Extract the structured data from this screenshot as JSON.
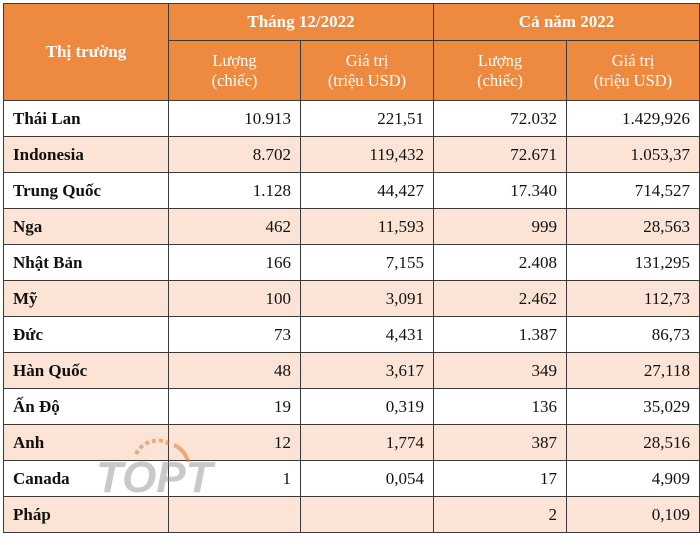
{
  "header": {
    "market": "Thị trường",
    "group1": "Tháng 12/2022",
    "group2": "Cả năm 2022",
    "qty_line1": "Lượng",
    "qty_line2": "(chiếc)",
    "val_line1": "Giá trị",
    "val_line2": "(triệu USD)"
  },
  "rows": [
    {
      "name": "Thái Lan",
      "m_qty": "10.913",
      "m_val": "221,51",
      "y_qty": "72.032",
      "y_val": "1.429,926"
    },
    {
      "name": "Indonesia",
      "m_qty": "8.702",
      "m_val": "119,432",
      "y_qty": "72.671",
      "y_val": "1.053,37"
    },
    {
      "name": "Trung Quốc",
      "m_qty": "1.128",
      "m_val": "44,427",
      "y_qty": "17.340",
      "y_val": "714,527"
    },
    {
      "name": "Nga",
      "m_qty": "462",
      "m_val": "11,593",
      "y_qty": "999",
      "y_val": "28,563"
    },
    {
      "name": "Nhật Bản",
      "m_qty": "166",
      "m_val": "7,155",
      "y_qty": "2.408",
      "y_val": "131,295"
    },
    {
      "name": "Mỹ",
      "m_qty": "100",
      "m_val": "3,091",
      "y_qty": "2.462",
      "y_val": "112,73"
    },
    {
      "name": "Đức",
      "m_qty": "73",
      "m_val": "4,431",
      "y_qty": "1.387",
      "y_val": "86,73"
    },
    {
      "name": "Hàn Quốc",
      "m_qty": "48",
      "m_val": "3,617",
      "y_qty": "349",
      "y_val": "27,118"
    },
    {
      "name": "Ấn Độ",
      "m_qty": "19",
      "m_val": "0,319",
      "y_qty": "136",
      "y_val": "35,029"
    },
    {
      "name": "Anh",
      "m_qty": "12",
      "m_val": "1,774",
      "y_qty": "387",
      "y_val": "28,516"
    },
    {
      "name": "Canada",
      "m_qty": "1",
      "m_val": "0,054",
      "y_qty": "17",
      "y_val": "4,909"
    },
    {
      "name": "Pháp",
      "m_qty": "",
      "m_val": "",
      "y_qty": "2",
      "y_val": "0,109"
    }
  ],
  "watermark": {
    "text": "TOPT"
  },
  "colors": {
    "header_bg": "#ee8a3f",
    "alt_row_bg": "#fbe4d5",
    "header_text": "#ffffff"
  }
}
